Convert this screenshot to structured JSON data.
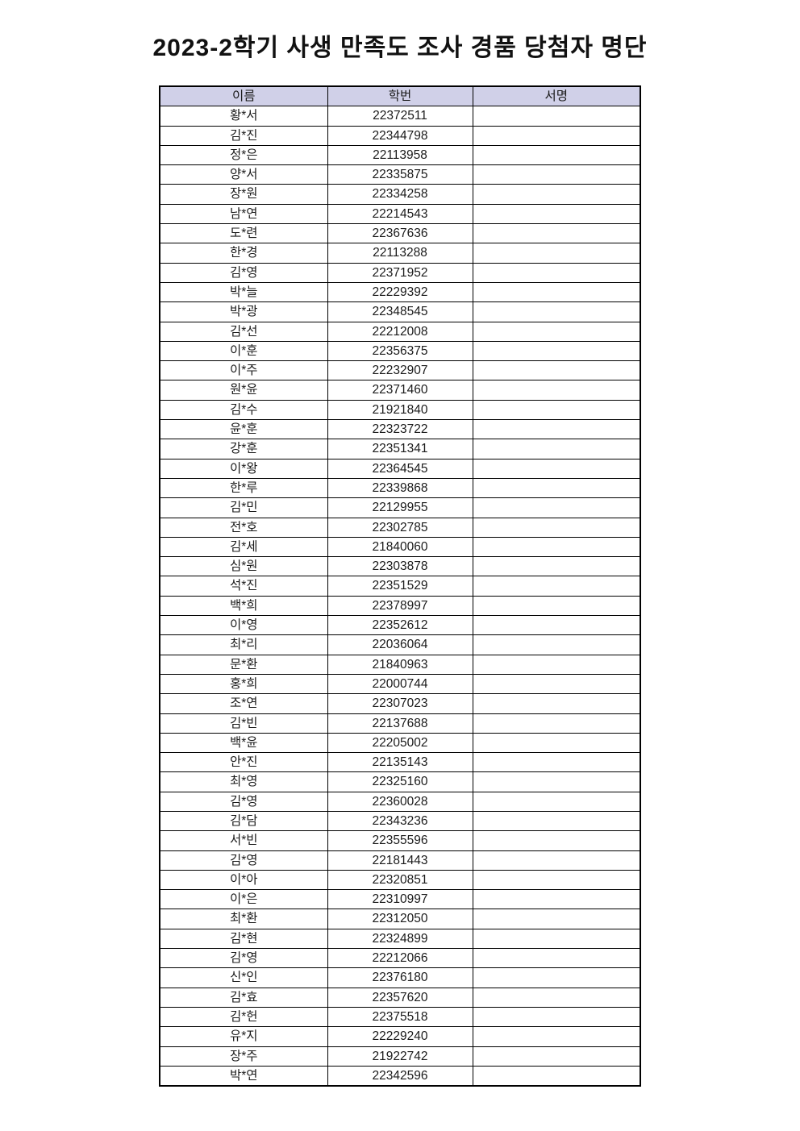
{
  "title": "2023-2학기 사생 만족도 조사 경품 당첨자 명단",
  "colors": {
    "header_bg": "#d0d0e8",
    "border": "#000000",
    "text": "#1a1a1a"
  },
  "table": {
    "headers": [
      "이름",
      "학번",
      "서명"
    ],
    "rows": [
      [
        "황*서",
        "22372511",
        ""
      ],
      [
        "김*진",
        "22344798",
        ""
      ],
      [
        "정*은",
        "22113958",
        ""
      ],
      [
        "양*서",
        "22335875",
        ""
      ],
      [
        "장*원",
        "22334258",
        ""
      ],
      [
        "남*연",
        "22214543",
        ""
      ],
      [
        "도*련",
        "22367636",
        ""
      ],
      [
        "한*경",
        "22113288",
        ""
      ],
      [
        "김*영",
        "22371952",
        ""
      ],
      [
        "박*늘",
        "22229392",
        ""
      ],
      [
        "박*광",
        "22348545",
        ""
      ],
      [
        "김*선",
        "22212008",
        ""
      ],
      [
        "이*훈",
        "22356375",
        ""
      ],
      [
        "이*주",
        "22232907",
        ""
      ],
      [
        "원*윤",
        "22371460",
        ""
      ],
      [
        "김*수",
        "21921840",
        ""
      ],
      [
        "윤*훈",
        "22323722",
        ""
      ],
      [
        "강*훈",
        "22351341",
        ""
      ],
      [
        "이*왕",
        "22364545",
        ""
      ],
      [
        "한*루",
        "22339868",
        ""
      ],
      [
        "김*민",
        "22129955",
        ""
      ],
      [
        "전*호",
        "22302785",
        ""
      ],
      [
        "김*세",
        "21840060",
        ""
      ],
      [
        "심*원",
        "22303878",
        ""
      ],
      [
        "석*진",
        "22351529",
        ""
      ],
      [
        "백*희",
        "22378997",
        ""
      ],
      [
        "이*영",
        "22352612",
        ""
      ],
      [
        "최*리",
        "22036064",
        ""
      ],
      [
        "문*환",
        "21840963",
        ""
      ],
      [
        "홍*희",
        "22000744",
        ""
      ],
      [
        "조*연",
        "22307023",
        ""
      ],
      [
        "김*빈",
        "22137688",
        ""
      ],
      [
        "백*윤",
        "22205002",
        ""
      ],
      [
        "안*진",
        "22135143",
        ""
      ],
      [
        "최*영",
        "22325160",
        ""
      ],
      [
        "김*영",
        "22360028",
        ""
      ],
      [
        "김*담",
        "22343236",
        ""
      ],
      [
        "서*빈",
        "22355596",
        ""
      ],
      [
        "김*영",
        "22181443",
        ""
      ],
      [
        "이*아",
        "22320851",
        ""
      ],
      [
        "이*은",
        "22310997",
        ""
      ],
      [
        "최*환",
        "22312050",
        ""
      ],
      [
        "김*현",
        "22324899",
        ""
      ],
      [
        "김*영",
        "22212066",
        ""
      ],
      [
        "신*인",
        "22376180",
        ""
      ],
      [
        "김*효",
        "22357620",
        ""
      ],
      [
        "김*헌",
        "22375518",
        ""
      ],
      [
        "유*지",
        "22229240",
        ""
      ],
      [
        "장*주",
        "21922742",
        ""
      ],
      [
        "박*연",
        "22342596",
        ""
      ]
    ]
  }
}
